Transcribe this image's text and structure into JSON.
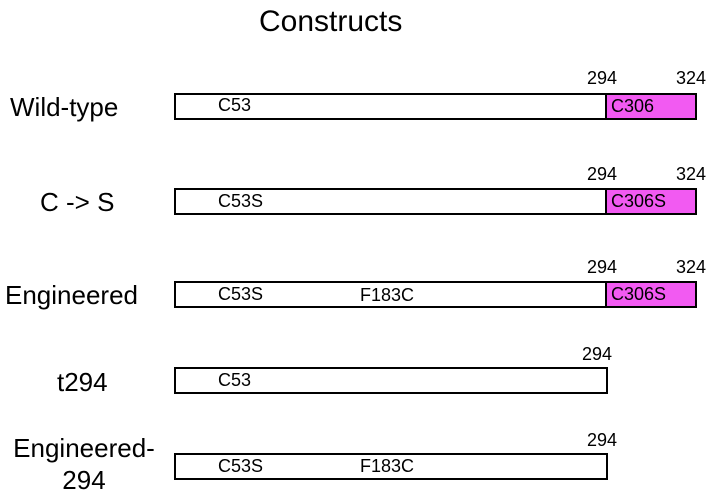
{
  "title": "Constructs",
  "colors": {
    "c_terminal_domain": "#f25af2",
    "bar_fill": "#ffffff",
    "outline": "#000000"
  },
  "constructs": [
    {
      "label": "Wild-type",
      "mutations": [
        "C53"
      ],
      "domain_label": "C306",
      "pos_start": "294",
      "pos_end": "324"
    },
    {
      "label": "C -> S",
      "mutations": [
        "C53S"
      ],
      "domain_label": "C306S",
      "pos_start": "294",
      "pos_end": "324"
    },
    {
      "label": "Engineered",
      "mutations": [
        "C53S",
        "F183C"
      ],
      "domain_label": "C306S",
      "pos_start": "294",
      "pos_end": "324"
    },
    {
      "label": "t294",
      "mutations": [
        "C53"
      ],
      "pos_end": "294"
    },
    {
      "label": "Engineered-294",
      "label_line1": "Engineered-",
      "label_line2": "294",
      "mutations": [
        "C53S",
        "F183C"
      ],
      "pos_end": "294"
    }
  ]
}
